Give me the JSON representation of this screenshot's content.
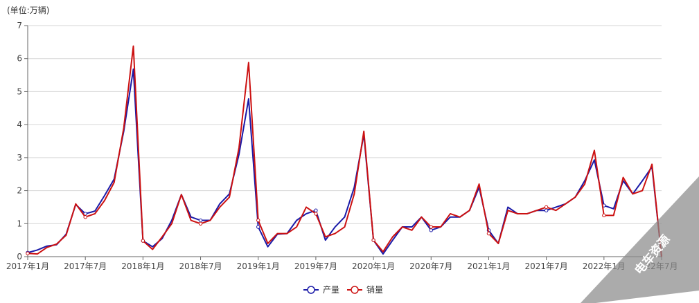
{
  "chart_data": {
    "type": "line",
    "unit_label": "(单位:万辆)",
    "x_tick_labels": [
      "2017年1月",
      "2017年7月",
      "2018年1月",
      "2018年7月",
      "2019年1月",
      "2019年7月",
      "2020年1月",
      "2020年7月",
      "2021年1月",
      "2021年7月",
      "2022年1月",
      "22年7月"
    ],
    "y_ticks": [
      0,
      1,
      2,
      3,
      4,
      5,
      6,
      7
    ],
    "ylim": [
      0,
      7
    ],
    "grid": true,
    "legend_position": "bottom",
    "x": [
      "2017年1月",
      "2017年2月",
      "2017年3月",
      "2017年4月",
      "2017年5月",
      "2017年6月",
      "2017年7月",
      "2017年8月",
      "2017年9月",
      "2017年10月",
      "2017年11月",
      "2017年12月",
      "2018年1月",
      "2018年2月",
      "2018年3月",
      "2018年4月",
      "2018年5月",
      "2018年6月",
      "2018年7月",
      "2018年8月",
      "2018年9月",
      "2018年10月",
      "2018年11月",
      "2018年12月",
      "2019年1月",
      "2019年2月",
      "2019年3月",
      "2019年4月",
      "2019年5月",
      "2019年6月",
      "2019年7月",
      "2019年8月",
      "2019年9月",
      "2019年10月",
      "2019年11月",
      "2019年12月",
      "2020年1月",
      "2020年2月",
      "2020年3月",
      "2020年4月",
      "2020年5月",
      "2020年6月",
      "2020年7月",
      "2020年8月",
      "2020年9月",
      "2020年10月",
      "2020年11月",
      "2020年12月",
      "2021年1月",
      "2021年2月",
      "2021年3月",
      "2021年4月",
      "2021年5月",
      "2021年6月",
      "2021年7月",
      "2021年8月",
      "2021年9月",
      "2021年10月",
      "2021年11月",
      "2021年12月",
      "2022年1月",
      "2022年2月",
      "2022年3月",
      "2022年4月",
      "2022年5月",
      "2022年6月",
      "2022年7月"
    ],
    "series": [
      {
        "name": "产量",
        "color": "#1a1aa8",
        "values": [
          0.12,
          0.2,
          0.32,
          0.36,
          0.68,
          1.58,
          1.3,
          1.38,
          1.85,
          2.35,
          3.8,
          5.68,
          0.48,
          0.3,
          0.55,
          1.1,
          1.88,
          1.2,
          1.1,
          1.1,
          1.6,
          1.9,
          3.1,
          4.78,
          0.9,
          0.3,
          0.68,
          0.7,
          1.1,
          1.3,
          1.4,
          0.5,
          0.9,
          1.2,
          2.1,
          3.7,
          0.5,
          0.08,
          0.5,
          0.9,
          0.9,
          1.2,
          0.8,
          0.9,
          1.2,
          1.2,
          1.4,
          2.1,
          0.8,
          0.4,
          1.5,
          1.3,
          1.3,
          1.4,
          1.4,
          1.5,
          1.6,
          1.8,
          2.3,
          2.93,
          1.55,
          1.45,
          2.3,
          1.9,
          2.3,
          2.72,
          0.0
        ]
      },
      {
        "name": "销量",
        "color": "#cc1111",
        "values": [
          0.1,
          0.08,
          0.28,
          0.38,
          0.65,
          1.6,
          1.2,
          1.3,
          1.7,
          2.25,
          3.9,
          6.38,
          0.48,
          0.22,
          0.6,
          1.0,
          1.88,
          1.1,
          1.0,
          1.1,
          1.5,
          1.8,
          3.3,
          5.88,
          1.1,
          0.4,
          0.7,
          0.7,
          0.9,
          1.5,
          1.3,
          0.6,
          0.7,
          0.9,
          1.9,
          3.8,
          0.5,
          0.15,
          0.6,
          0.9,
          0.8,
          1.2,
          0.9,
          0.9,
          1.3,
          1.2,
          1.4,
          2.2,
          0.7,
          0.4,
          1.4,
          1.3,
          1.3,
          1.4,
          1.5,
          1.4,
          1.6,
          1.8,
          2.2,
          3.22,
          1.25,
          1.25,
          2.4,
          1.9,
          2.0,
          2.8,
          0.0
        ]
      }
    ]
  },
  "watermark": "电车资源"
}
